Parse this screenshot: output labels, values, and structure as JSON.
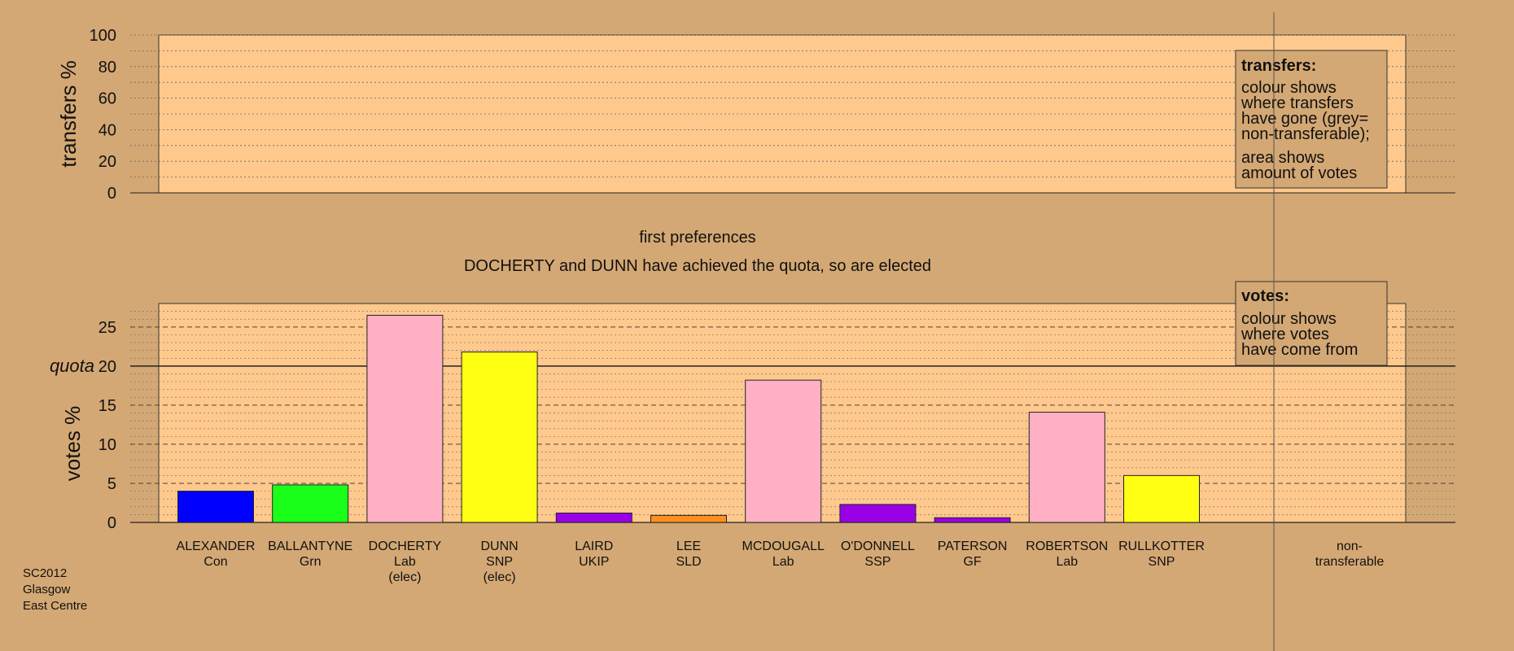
{
  "top_panel": {
    "ylabel": "transfers %",
    "ylim": [
      0,
      100
    ],
    "ticks": [
      0,
      20,
      40,
      60,
      80,
      100
    ],
    "legend": {
      "title": "transfers:",
      "lines1": [
        "colour shows",
        "where transfers",
        "have gone (grey=",
        "non-transferable);"
      ],
      "lines2": [
        "area shows",
        "amount of votes"
      ]
    }
  },
  "headings": {
    "stage": "first preferences",
    "status": "DOCHERTY and DUNN have achieved the quota, so are elected"
  },
  "footer": {
    "lines": [
      "SC2012",
      "Glasgow",
      "East Centre"
    ]
  },
  "chart_data": {
    "type": "bar",
    "ylabel": "votes %",
    "ylim": [
      0,
      28
    ],
    "yticks": [
      0,
      5,
      10,
      15,
      20,
      25
    ],
    "quota": 20,
    "quota_label": "quota",
    "legend": {
      "title": "votes:",
      "lines": [
        "colour shows",
        "where votes",
        "have come from"
      ]
    },
    "candidates": [
      {
        "name": "ALEXANDER",
        "party": "Con",
        "elected": "",
        "value": 4.0,
        "color": "#0000ff"
      },
      {
        "name": "BALLANTYNE",
        "party": "Grn",
        "elected": "",
        "value": 4.8,
        "color": "#1aff1a"
      },
      {
        "name": "DOCHERTY",
        "party": "Lab",
        "elected": "(elec)",
        "value": 26.5,
        "color": "#ffb0c4"
      },
      {
        "name": "DUNN",
        "party": "SNP",
        "elected": "(elec)",
        "value": 21.8,
        "color": "#ffff14"
      },
      {
        "name": "LAIRD",
        "party": "UKIP",
        "elected": "",
        "value": 1.2,
        "color": "#9a00e6"
      },
      {
        "name": "LEE",
        "party": "SLD",
        "elected": "",
        "value": 0.9,
        "color": "#ff9020"
      },
      {
        "name": "MCDOUGALL",
        "party": "Lab",
        "elected": "",
        "value": 18.2,
        "color": "#ffb0c4"
      },
      {
        "name": "O'DONNELL",
        "party": "SSP",
        "elected": "",
        "value": 2.3,
        "color": "#9a00e6"
      },
      {
        "name": "PATERSON",
        "party": "GF",
        "elected": "",
        "value": 0.6,
        "color": "#9a00e6"
      },
      {
        "name": "ROBERTSON",
        "party": "Lab",
        "elected": "",
        "value": 14.1,
        "color": "#ffb0c4"
      },
      {
        "name": "RULLKOTTER",
        "party": "SNP",
        "elected": "",
        "value": 6.0,
        "color": "#ffff14"
      }
    ],
    "nontransferable": {
      "line1": "non-",
      "line2": "transferable"
    }
  }
}
